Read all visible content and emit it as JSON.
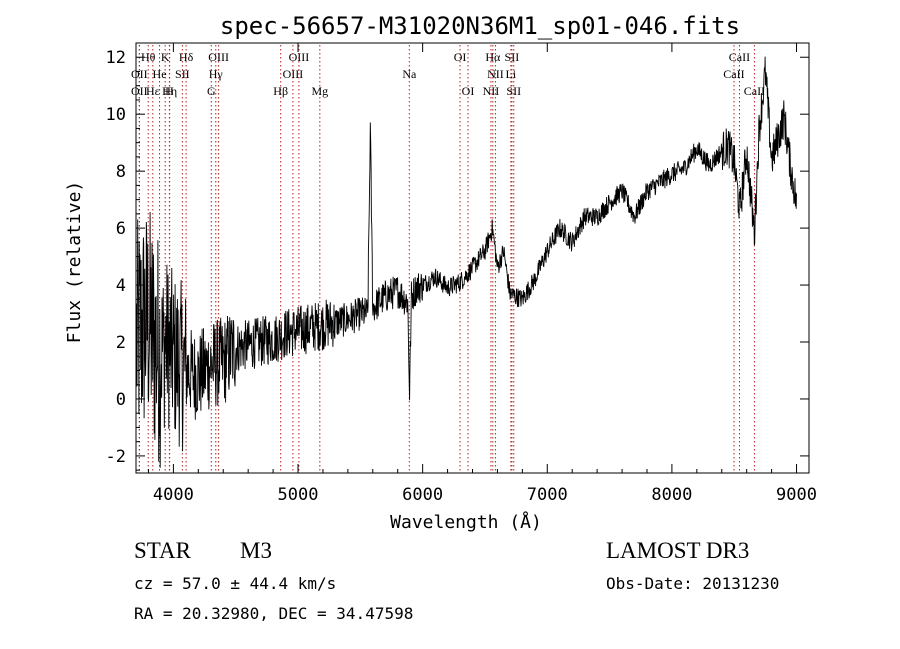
{
  "chart_data": {
    "type": "line",
    "title": "spec-56657-M31020N36M1_sp01-046.fits",
    "xlabel": "Wavelength (Å)",
    "ylabel": "Flux (relative)",
    "xlim": [
      3700,
      9100
    ],
    "ylim": [
      -2.6,
      12.5
    ],
    "xticks": [
      4000,
      5000,
      6000,
      7000,
      8000,
      9000
    ],
    "yticks": [
      -2,
      0,
      2,
      4,
      6,
      8,
      10,
      12
    ],
    "grid": false,
    "spectrum_anchors": {
      "x": [
        3700,
        3750,
        3800,
        3850,
        3900,
        3950,
        4000,
        4100,
        4200,
        4300,
        4400,
        4500,
        4600,
        4700,
        4800,
        4900,
        5000,
        5100,
        5200,
        5300,
        5400,
        5500,
        5560,
        5580,
        5600,
        5700,
        5800,
        5880,
        5895,
        5910,
        5950,
        6000,
        6100,
        6200,
        6300,
        6400,
        6500,
        6560,
        6600,
        6650,
        6700,
        6800,
        6900,
        7000,
        7100,
        7200,
        7300,
        7400,
        7500,
        7600,
        7700,
        7800,
        7900,
        8000,
        8100,
        8200,
        8300,
        8400,
        8450,
        8500,
        8545,
        8600,
        8662,
        8700,
        8750,
        8800,
        8900,
        8950,
        9000
      ],
      "y": [
        2.0,
        2.5,
        2.8,
        2.0,
        1.7,
        2.0,
        1.5,
        1.0,
        0.8,
        1.2,
        1.3,
        1.8,
        1.9,
        2.0,
        2.1,
        2.3,
        2.4,
        2.5,
        2.6,
        2.7,
        2.8,
        3.0,
        3.0,
        9.5,
        3.2,
        3.6,
        3.8,
        3.4,
        0.2,
        3.6,
        3.9,
        4.0,
        4.3,
        3.9,
        4.1,
        4.6,
        5.2,
        6.0,
        4.6,
        5.2,
        3.7,
        3.5,
        4.2,
        5.2,
        6.0,
        5.5,
        6.4,
        6.4,
        6.9,
        7.3,
        6.4,
        7.3,
        7.6,
        7.9,
        8.1,
        8.8,
        8.2,
        8.7,
        8.9,
        8.3,
        6.6,
        8.7,
        5.8,
        9.5,
        11.5,
        8.4,
        9.9,
        8.2,
        6.9
      ]
    },
    "lines": [
      {
        "name": "Hθ",
        "x": 3798,
        "row": 0
      },
      {
        "name": "K",
        "x": 3934,
        "row": 0
      },
      {
        "name": "Hδ",
        "x": 4102,
        "row": 0
      },
      {
        "name": "OIII",
        "x": 4363,
        "row": 0
      },
      {
        "name": "OIII",
        "x": 5007,
        "row": 0
      },
      {
        "name": "OI",
        "x": 6300,
        "row": 0
      },
      {
        "name": "Hα",
        "x": 6563,
        "row": 0
      },
      {
        "name": "SII",
        "x": 6716,
        "row": 0
      },
      {
        "name": "CaII",
        "x": 8542,
        "row": 0
      },
      {
        "name": "OII",
        "x": 3727,
        "row": 1
      },
      {
        "name": "He",
        "x": 3889,
        "row": 1
      },
      {
        "name": "SII",
        "x": 4072,
        "row": 1
      },
      {
        "name": "Hγ",
        "x": 4340,
        "row": 1
      },
      {
        "name": "OIII",
        "x": 4959,
        "row": 1
      },
      {
        "name": "Na",
        "x": 5893,
        "row": 1
      },
      {
        "name": "NII",
        "x": 6584,
        "row": 1
      },
      {
        "name": "Li",
        "x": 6708,
        "row": 1
      },
      {
        "name": "CaII",
        "x": 8498,
        "row": 1
      },
      {
        "name": "OII",
        "x": 3727,
        "row": 2
      },
      {
        "name": "Hε",
        "x": 3835,
        "row": 2
      },
      {
        "name": "Hη",
        "x": 3970,
        "row": 2
      },
      {
        "name": "H",
        "x": 3968,
        "row": 2
      },
      {
        "name": "G",
        "x": 4304,
        "row": 2
      },
      {
        "name": "Hβ",
        "x": 4861,
        "row": 2
      },
      {
        "name": "Mg",
        "x": 5175,
        "row": 2
      },
      {
        "name": "OI",
        "x": 6364,
        "row": 2
      },
      {
        "name": "NII",
        "x": 6548,
        "row": 2
      },
      {
        "name": "SII",
        "x": 6731,
        "row": 2
      },
      {
        "name": "CaII",
        "x": 8662,
        "row": 2
      }
    ],
    "colors": {
      "spectrum": "#000000",
      "line_markers": "#b22222",
      "axes": "#000000"
    }
  },
  "info": {
    "object_class": "STAR",
    "subclass": "M3",
    "survey": "LAMOST DR3",
    "redshift": "cz = 57.0 ± 44.4 km/s",
    "obs_date": "Obs-Date: 20131230",
    "coords": "RA =  20.32980, DEC =  34.47598"
  }
}
